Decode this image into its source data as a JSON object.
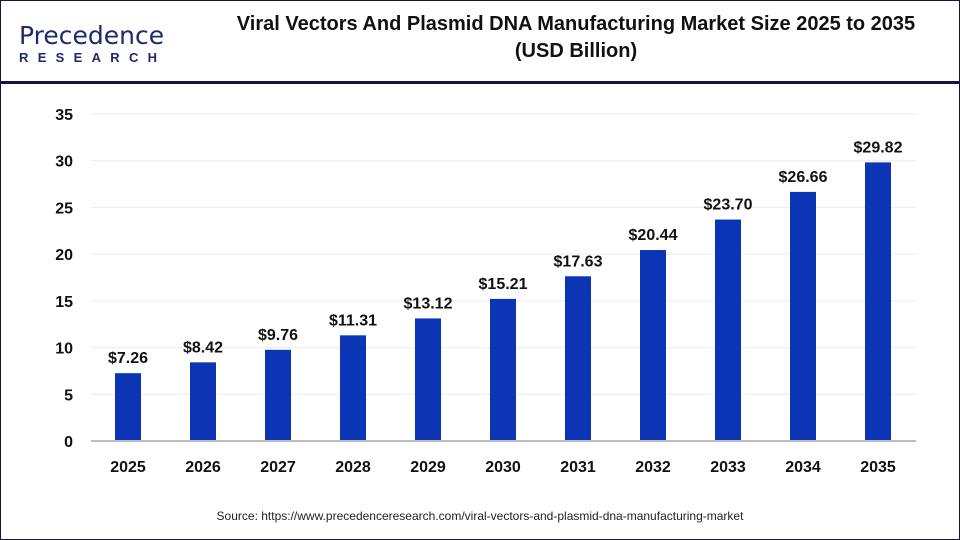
{
  "logo": {
    "line1": "Precedence",
    "line2": "RESEARCH"
  },
  "title_line1": "Viral Vectors And Plasmid DNA Manufacturing Market Size 2025 to 2035",
  "title_line2": "(USD Billion)",
  "source": "Source: https://www.precedenceresearch.com/viral-vectors-and-plasmid-dna-manufacturing-market",
  "colors": {
    "bar": "#0C35B5",
    "header_rule": "#14103a"
  },
  "chart_data": {
    "type": "bar",
    "title": "Viral Vectors And Plasmid DNA Manufacturing Market Size 2025 to 2035 (USD Billion)",
    "categories": [
      "2025",
      "2026",
      "2027",
      "2028",
      "2029",
      "2030",
      "2031",
      "2032",
      "2033",
      "2034",
      "2035"
    ],
    "values": [
      7.26,
      8.42,
      9.76,
      11.31,
      13.12,
      15.21,
      17.63,
      20.44,
      23.7,
      26.66,
      29.82
    ],
    "data_labels": [
      "$7.26",
      "$8.42",
      "$9.76",
      "$11.31",
      "$13.12",
      "$15.21",
      "$17.63",
      "$20.44",
      "$23.70",
      "$26.66",
      "$29.82"
    ],
    "ylim": [
      0,
      35
    ],
    "yticks": [
      0,
      5,
      10,
      15,
      20,
      25,
      30,
      35
    ],
    "xlabel": "",
    "ylabel": "",
    "grid": true,
    "legend": "none"
  }
}
